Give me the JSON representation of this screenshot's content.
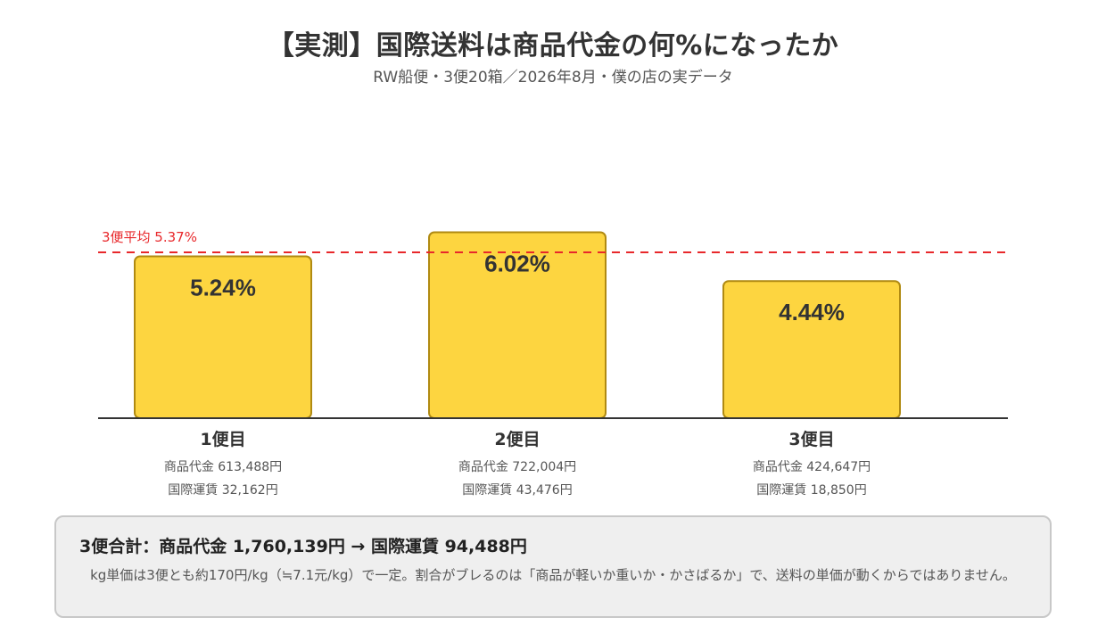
{
  "title": "【実測】国際送料は商品代金の何%になったか",
  "subtitle": "RW船便・3便20箱／2026年8月・僕の店の実データ",
  "colors": {
    "bar_fill": "#FDD540",
    "bar_stroke": "#B08A12",
    "avg_line": "#E8282B",
    "axis": "#333333"
  },
  "chart_data": {
    "type": "bar",
    "categories": [
      "1便目",
      "2便目",
      "3便目"
    ],
    "values": [
      5.24,
      6.02,
      4.44
    ],
    "value_labels": [
      "5.24%",
      "6.02%",
      "4.44%"
    ],
    "ylim": [
      0,
      6.9
    ],
    "details": [
      {
        "goods": "商品代金 613,488円",
        "freight": "国際運賃 32,162円"
      },
      {
        "goods": "商品代金 722,004円",
        "freight": "国際運賃 43,476円"
      },
      {
        "goods": "商品代金 424,647円",
        "freight": "国際運賃 18,850円"
      }
    ],
    "reference_line": {
      "value": 5.37,
      "label": "3便平均 5.37%"
    },
    "grid": false
  },
  "summary": {
    "title": "3便合計：商品代金 1,760,139円 → 国際運賃 94,488円",
    "note": "kg単価は3便とも約170円/kg（≒7.1元/kg）で一定。割合がブレるのは「商品が軽いか重いか・かさばるか」で、送料の単価が動くからではありません。"
  }
}
